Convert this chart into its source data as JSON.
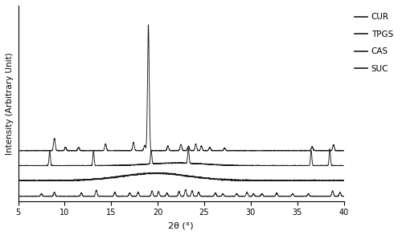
{
  "xlim": [
    5,
    40
  ],
  "xlabel": "2θ (°)",
  "ylabel": "Intensity (Arbitrary Unit)",
  "legend_labels": [
    "CUR",
    "TPGS",
    "CAS",
    "SUC"
  ],
  "line_color": "#1a1a1a",
  "background_color": "#ffffff",
  "figsize": [
    5.0,
    2.93
  ],
  "dpi": 100,
  "cur_baseline": 0.72,
  "tpgs_baseline": 0.5,
  "cas_baseline": 0.28,
  "suc_baseline": 0.05,
  "cur_peaks": [
    8.9,
    10.1,
    11.5,
    14.4,
    17.4,
    18.6,
    19.0,
    21.1,
    22.5,
    23.3,
    24.1,
    24.7,
    25.6,
    27.2,
    36.6,
    38.9
  ],
  "cur_heights": [
    0.18,
    0.05,
    0.05,
    0.1,
    0.12,
    0.08,
    1.85,
    0.07,
    0.09,
    0.07,
    0.1,
    0.07,
    0.05,
    0.04,
    0.06,
    0.09
  ],
  "cur_big_peak": [
    19.0,
    1.85
  ],
  "tpgs_peaks": [
    8.4,
    13.1,
    19.3,
    23.3,
    36.5,
    38.5
  ],
  "tpgs_heights": [
    0.22,
    0.22,
    0.2,
    0.22,
    0.22,
    0.25
  ],
  "cas_peaks": [
    19.5
  ],
  "cas_heights": [
    0.04
  ],
  "cas_broad": [
    20.0,
    4.0,
    0.07
  ],
  "suc_peaks": [
    7.5,
    8.9,
    11.8,
    13.4,
    15.4,
    17.0,
    17.9,
    19.4,
    20.1,
    21.0,
    22.3,
    23.0,
    23.7,
    24.4,
    26.2,
    27.0,
    28.5,
    29.6,
    30.3,
    31.2,
    32.8,
    34.5,
    36.2,
    38.8,
    39.6
  ],
  "suc_heights": [
    0.04,
    0.06,
    0.05,
    0.09,
    0.06,
    0.05,
    0.06,
    0.08,
    0.07,
    0.05,
    0.07,
    0.1,
    0.08,
    0.06,
    0.05,
    0.04,
    0.04,
    0.06,
    0.04,
    0.04,
    0.05,
    0.04,
    0.04,
    0.08,
    0.06
  ]
}
